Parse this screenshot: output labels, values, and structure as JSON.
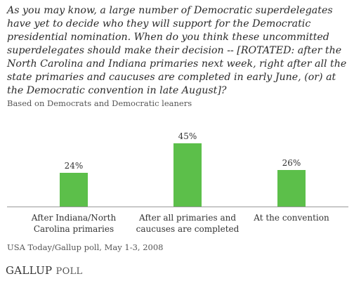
{
  "question": "As you may know, a large number of Democratic superdelegates have yet to decide who they will support for the Democratic presidential nomination. When do you think these uncommitted superdelegates should make their decision -- [ROTATED: after the North Carolina and Indiana primaries next week, right after all the state primaries and caucuses are completed in early June, (or) at the Democratic convention in late August]?",
  "subtitle": "Based on Democrats and Democratic leaners",
  "source": "USA Today/Gallup poll, May 1-3, 2008",
  "logo": {
    "main": "GALLUP",
    "poll": "POLL"
  },
  "colors": {
    "bar": "#5cbf4a",
    "axis": "#999999"
  },
  "chart_data": {
    "type": "bar",
    "categories": [
      [
        "After Indiana/North",
        "Carolina primaries"
      ],
      [
        "After all primaries and",
        "caucuses are completed"
      ],
      [
        "At the convention"
      ]
    ],
    "values": [
      24,
      45,
      26
    ],
    "value_labels": [
      "24%",
      "45%",
      "26%"
    ],
    "title": "",
    "xlabel": "",
    "ylabel": "",
    "ylim": [
      0,
      50
    ],
    "grid": false,
    "legend": "none"
  }
}
